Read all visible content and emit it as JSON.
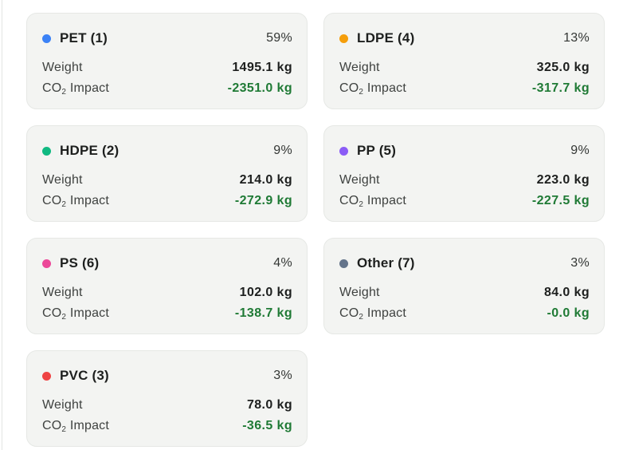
{
  "labels": {
    "weight": "Weight",
    "co2_prefix": "CO",
    "co2_sub": "2",
    "co2_suffix": " Impact"
  },
  "cards": [
    {
      "name": "PET (1)",
      "percent": "59%",
      "weight": "1495.1 kg",
      "co2": "-2351.0 kg",
      "color": "#3b82f6"
    },
    {
      "name": "LDPE (4)",
      "percent": "13%",
      "weight": "325.0 kg",
      "co2": "-317.7 kg",
      "color": "#f59e0b"
    },
    {
      "name": "HDPE (2)",
      "percent": "9%",
      "weight": "214.0 kg",
      "co2": "-272.9 kg",
      "color": "#10b981"
    },
    {
      "name": "PP (5)",
      "percent": "9%",
      "weight": "223.0 kg",
      "co2": "-227.5 kg",
      "color": "#8b5cf6"
    },
    {
      "name": "PS (6)",
      "percent": "4%",
      "weight": "102.0 kg",
      "co2": "-138.7 kg",
      "color": "#ec4899"
    },
    {
      "name": "Other (7)",
      "percent": "3%",
      "weight": "84.0 kg",
      "co2": "-0.0 kg",
      "color": "#64748b"
    },
    {
      "name": "PVC (3)",
      "percent": "3%",
      "weight": "78.0 kg",
      "co2": "-36.5 kg",
      "color": "#ef4444"
    }
  ]
}
